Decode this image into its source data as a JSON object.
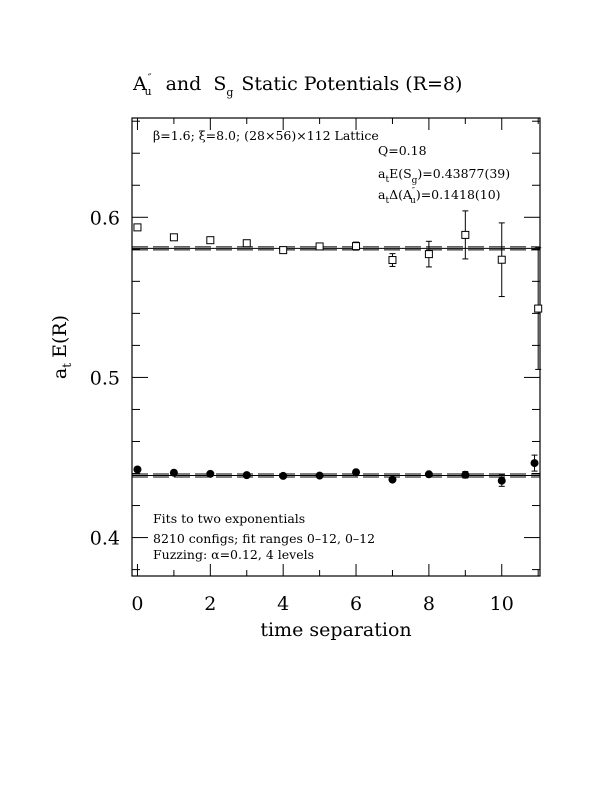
{
  "chart_data": {
    "type": "scatter",
    "title": {
      "a_main": "A",
      "a_sup": "″",
      "a_sub": "u",
      "and": "and",
      "s_main": "S",
      "s_sub": "g",
      "rest": "Static Potentials (R=8)"
    },
    "xlabel": "time separation",
    "ylabel": {
      "a": "a",
      "t": "t",
      "rest": "E(R)"
    },
    "xlim": [
      -0.15,
      11.05
    ],
    "ylim": [
      0.376,
      0.662
    ],
    "x_ticks": [
      "0",
      "2",
      "4",
      "6",
      "8",
      "10"
    ],
    "y_ticks": [
      "0.4",
      "0.5",
      "0.6"
    ],
    "annotations": {
      "lattice": "β=1.6; ξ=8.0; (28×56)×112 Lattice",
      "q": "Q=0.18",
      "es_prefix": "a",
      "es_t": "t",
      "es_mid": "E(S",
      "es_g": "g",
      "es_val": ")=0.43877(39)",
      "da_prefix": "a",
      "da_t": "t",
      "da_mid": "Δ(A",
      "da_sup": "″",
      "da_u": "u",
      "da_val": ")=0.1418(10)",
      "fits": "Fits to two exponentials",
      "configs": "8210 configs; fit ranges 0–12, 0–12",
      "fuzzing": "Fuzzing: α=0.12, 4 levels"
    },
    "series": [
      {
        "marker": "filled-circle",
        "fit": 0.43877,
        "points": [
          {
            "x": 0,
            "y": 0.4425,
            "err": 0
          },
          {
            "x": 1,
            "y": 0.4405,
            "err": 0
          },
          {
            "x": 2,
            "y": 0.4398,
            "err": 0
          },
          {
            "x": 3,
            "y": 0.439,
            "err": 0
          },
          {
            "x": 4,
            "y": 0.4385,
            "err": 0
          },
          {
            "x": 5,
            "y": 0.4387,
            "err": 0
          },
          {
            "x": 6,
            "y": 0.4408,
            "err": 0
          },
          {
            "x": 7,
            "y": 0.4362,
            "err": 0.001
          },
          {
            "x": 8,
            "y": 0.4395,
            "err": 0.001
          },
          {
            "x": 9,
            "y": 0.4392,
            "err": 0.002
          },
          {
            "x": 10,
            "y": 0.4355,
            "err": 0.0035
          },
          {
            "x": 10.9,
            "y": 0.4465,
            "err": 0.005
          }
        ]
      },
      {
        "marker": "open-square",
        "fit": 0.58057,
        "points": [
          {
            "x": 0,
            "y": 0.5937,
            "err": 0.0008
          },
          {
            "x": 1,
            "y": 0.5875,
            "err": 0.0008
          },
          {
            "x": 2,
            "y": 0.5857,
            "err": 0.0008
          },
          {
            "x": 3,
            "y": 0.5838,
            "err": 0.0008
          },
          {
            "x": 4,
            "y": 0.5795,
            "err": 0.001
          },
          {
            "x": 5,
            "y": 0.5818,
            "err": 0.001
          },
          {
            "x": 6,
            "y": 0.582,
            "err": 0.0025
          },
          {
            "x": 7,
            "y": 0.5733,
            "err": 0.004
          },
          {
            "x": 8,
            "y": 0.577,
            "err": 0.008
          },
          {
            "x": 9,
            "y": 0.589,
            "err": 0.015
          },
          {
            "x": 10,
            "y": 0.5735,
            "err": 0.023
          },
          {
            "x": 11,
            "y": 0.543,
            "err": 0.038
          }
        ]
      }
    ]
  }
}
